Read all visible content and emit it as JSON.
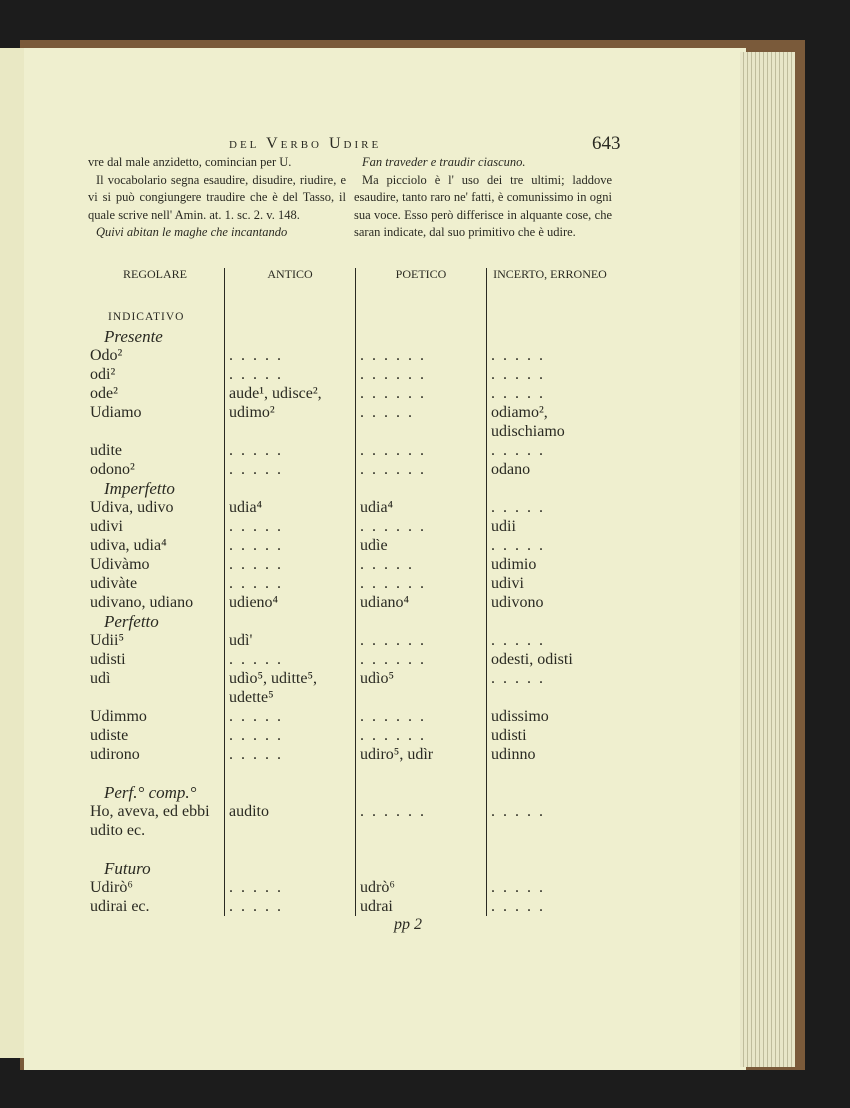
{
  "header": {
    "running_title": "del Verbo Udire",
    "page_number": "643"
  },
  "intro": {
    "left": [
      "vre dal male anzidetto, comincian per U.",
      "Il vocabolario segna esaudire, disudire, riudire, e vi si può congiungere traudire che è del Tasso, il quale scrive nell' Amin. at. 1. sc. 2. v. 148.",
      "Quivi abitan le maghe che incantando"
    ],
    "right": [
      "Fan traveder e traudir ciascuno.",
      "Ma picciolo è l' uso dei tre ultimi; laddove esaudire, tanto raro ne' fatti, è comunissimo in ogni sua voce. Esso però differisce in alquante cose, che saran indicate, dal suo primitivo che è udire."
    ]
  },
  "table": {
    "headers": [
      "REGOLARE",
      "ANTICO",
      "POETICO",
      "INCERTO, ERRONEO"
    ],
    "rows": [
      {
        "type": "mood",
        "label": "INDICATIVO"
      },
      {
        "type": "section",
        "label": "Presente"
      },
      {
        "cells": [
          "Odo²",
          ". . . . .",
          ". . . . . .",
          ". . . . ."
        ]
      },
      {
        "cells": [
          "odi²",
          ". . . . .",
          ". . . . . .",
          ". . . . ."
        ]
      },
      {
        "cells": [
          "ode²",
          "aude¹, udisce²,",
          ". . . . . .",
          ". . . . ."
        ]
      },
      {
        "cells": [
          "Udiamo",
          "udimo²",
          ". . . . .",
          "odiamo², udischiamo"
        ]
      },
      {
        "cells": [
          "udite",
          ". . . . .",
          ". . . . . .",
          ". . . . ."
        ]
      },
      {
        "cells": [
          "odono²",
          ". . . . .",
          ". . . . . .",
          "odano"
        ]
      },
      {
        "type": "section",
        "label": "Imperfetto"
      },
      {
        "cells": [
          "Udiva, udivo",
          "udia⁴",
          "udia⁴",
          ". . . . ."
        ]
      },
      {
        "cells": [
          "udivi",
          ". . . . .",
          ". . . . . .",
          "udii"
        ]
      },
      {
        "cells": [
          "udiva, udia⁴",
          ". . . . .",
          "udìe",
          ". . . . ."
        ]
      },
      {
        "cells": [
          "Udivàmo",
          ". . . . .",
          ". . . . .",
          "udimio"
        ]
      },
      {
        "cells": [
          "udivàte",
          ". . . . .",
          ". . . . . .",
          "udivi"
        ]
      },
      {
        "cells": [
          "udivano, udiano",
          "udieno⁴",
          "udiano⁴",
          "udivono"
        ]
      },
      {
        "type": "section",
        "label": "Perfetto"
      },
      {
        "cells": [
          "Udii⁵",
          "udì'",
          ". . . . . .",
          ". . . . ."
        ]
      },
      {
        "cells": [
          "udisti",
          ". . . . .",
          ". . . . . .",
          "odesti, odisti"
        ]
      },
      {
        "cells": [
          "udì",
          "udìo⁵, uditte⁵, udette⁵",
          "udìo⁵",
          ". . . . ."
        ]
      },
      {
        "cells": [
          "Udimmo",
          ". . . . .",
          ". . . . . .",
          "udissimo"
        ]
      },
      {
        "cells": [
          "udiste",
          ". . . . .",
          ". . . . . .",
          "udisti"
        ]
      },
      {
        "cells": [
          "udirono",
          ". . . . .",
          "udiro⁵, udìr",
          "udinno"
        ]
      },
      {
        "type": "blank"
      },
      {
        "type": "section",
        "label": "Perf.° comp.°"
      },
      {
        "cells": [
          "Ho, aveva, ed ebbi udito ec.",
          "audito",
          ". . . . . .",
          ". . . . ."
        ]
      },
      {
        "type": "blank"
      },
      {
        "type": "section",
        "label": "Futuro"
      },
      {
        "cells": [
          "Udirò⁶",
          ". . . . .",
          "udrò⁶",
          ". . . . ."
        ]
      },
      {
        "cells": [
          "udirai ec.",
          ". . . . .",
          "udrai",
          ". . . . ."
        ]
      }
    ]
  },
  "signature": "pp 2"
}
